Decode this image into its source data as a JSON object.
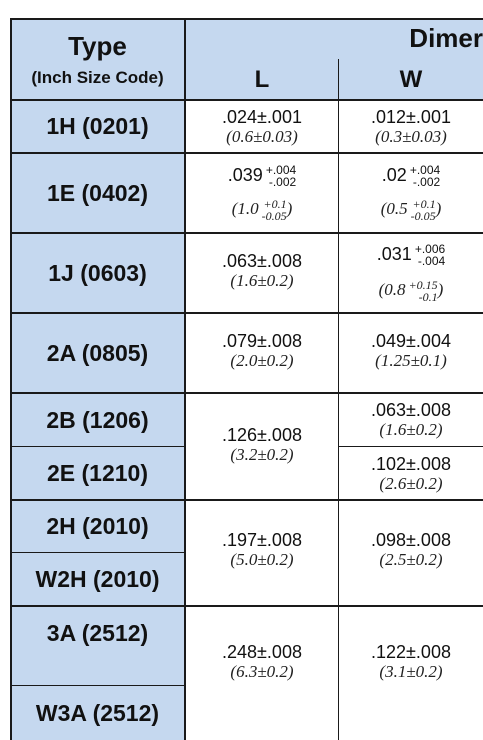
{
  "header": {
    "type": "Type",
    "size_code": "(Inch Size Code)",
    "dimensions": "Dimer",
    "col_l": "L",
    "col_w": "W"
  },
  "rows": [
    {
      "type": "1H (0201)",
      "l_in": ".024±.001",
      "l_mm": "(0.6±0.03)",
      "w_in": ".012±.001",
      "w_mm": "(0.3±0.03)"
    },
    {
      "type": "1E (0402)",
      "l_in_base": ".039",
      "l_in_tol_plus": "+.004",
      "l_in_tol_minus": "-.002",
      "l_mm_open": "(1.0",
      "l_mm_tol_plus": "+0.1",
      "l_mm_tol_minus": "-0.05",
      "l_mm_close": ")",
      "w_in_base": ".02",
      "w_in_tol_plus": "+.004",
      "w_in_tol_minus": "-.002",
      "w_mm_open": "(0.5",
      "w_mm_tol_plus": "+0.1",
      "w_mm_tol_minus": "-0.05",
      "w_mm_close": ")"
    },
    {
      "type": "1J (0603)",
      "l_in": ".063±.008",
      "l_mm": "(1.6±0.2)",
      "w_in_base": ".031",
      "w_in_tol_plus": "+.006",
      "w_in_tol_minus": "-.004",
      "w_mm_open": "(0.8",
      "w_mm_tol_plus": "+0.15",
      "w_mm_tol_minus": "-0.1",
      "w_mm_close": ")"
    },
    {
      "type": "2A (0805)",
      "l_in": ".079±.008",
      "l_mm": "(2.0±0.2)",
      "w_in": ".049±.004",
      "w_mm": "(1.25±0.1)"
    },
    {
      "type": "2B (1206)",
      "w_in": ".063±.008",
      "w_mm": "(1.6±0.2)"
    },
    {
      "type": "2E (1210)",
      "w_in": ".102±.008",
      "w_mm": "(2.6±0.2)"
    },
    {
      "type": "2H (2010)"
    },
    {
      "type": "W2H (2010)"
    },
    {
      "type": "3A (2512)"
    },
    {
      "type": "W3A (2512)"
    }
  ],
  "merged": {
    "b2b_l_in": ".126±.008",
    "b2b_l_mm": "(3.2±0.2)",
    "h2h_l_in": ".197±.008",
    "h2h_l_mm": "(5.0±0.2)",
    "h2h_w_in": ".098±.008",
    "h2h_w_mm": "(2.5±0.2)",
    "a3a_l_in": ".248±.008",
    "a3a_l_mm": "(6.3±0.2)",
    "a3a_w_in": ".122±.008",
    "a3a_w_mm": "(3.1±0.2)"
  }
}
